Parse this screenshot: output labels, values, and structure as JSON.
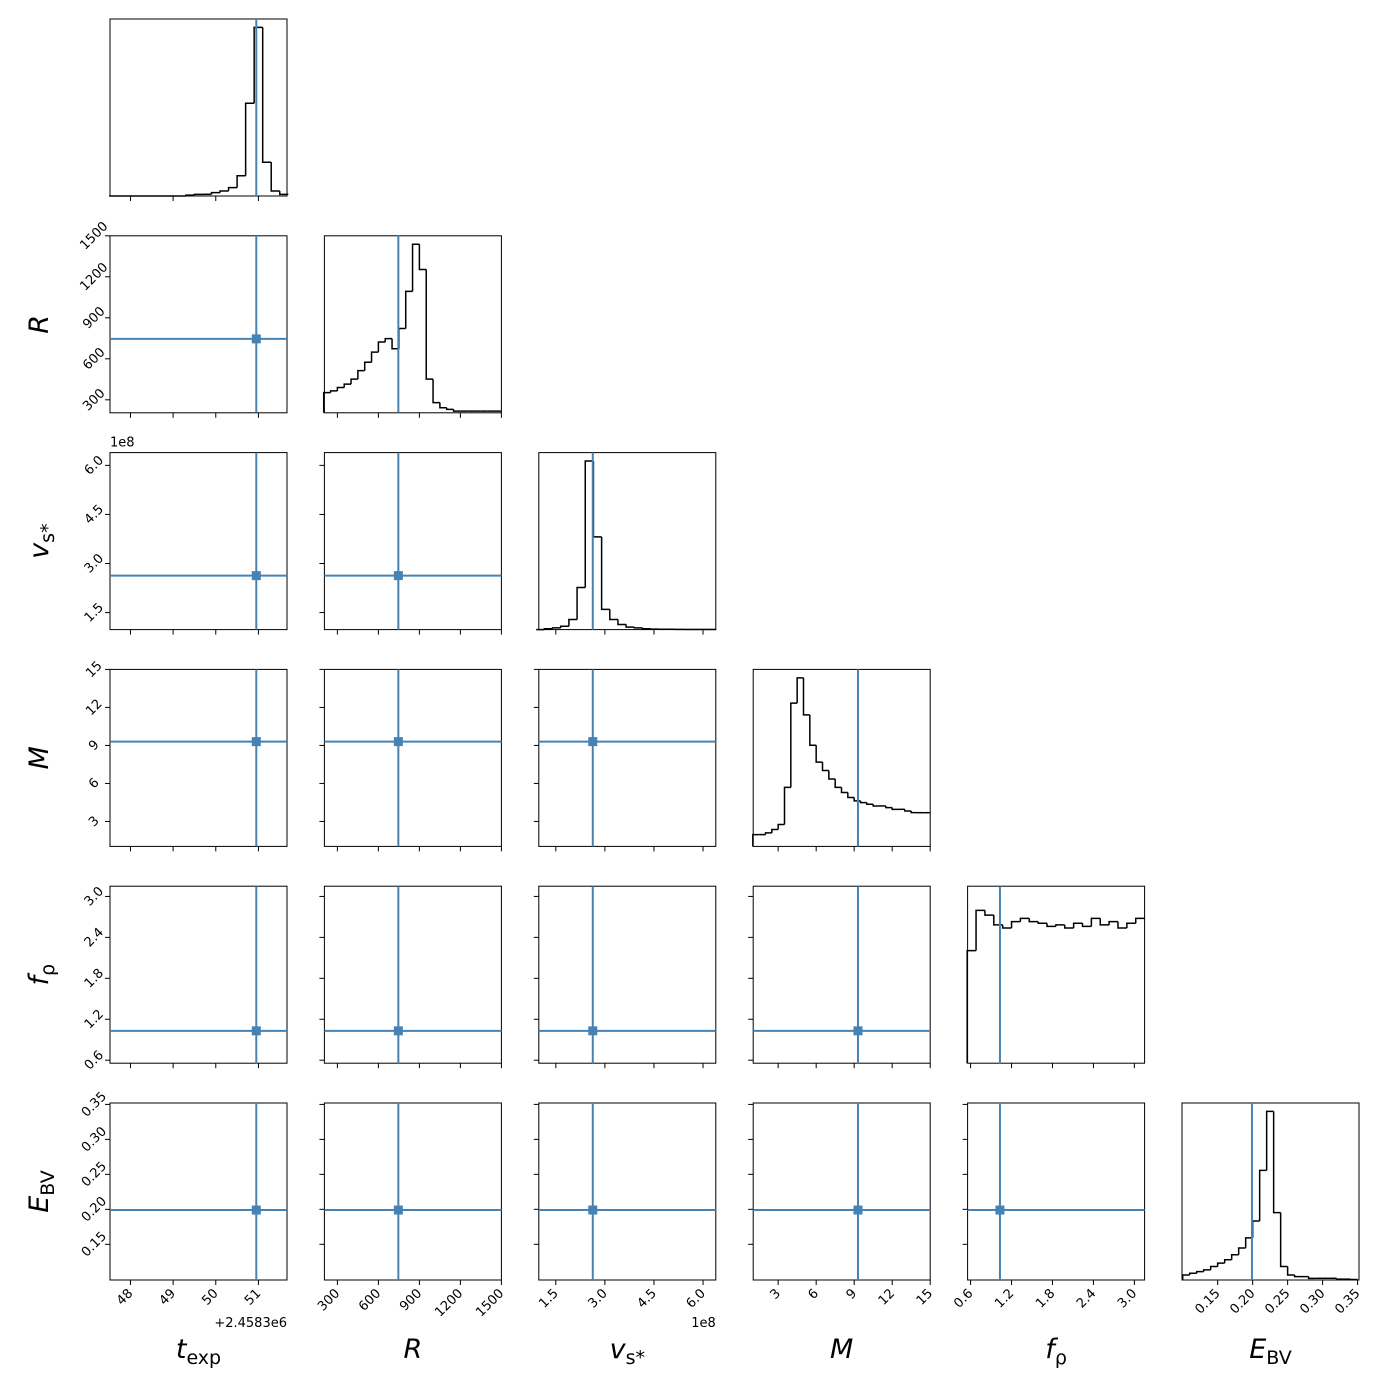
{
  "chart_data": {
    "type": "corner",
    "truth_color": "#4682b4",
    "hist_color": "#000000",
    "parameters": [
      {
        "label": {
          "symbol": "t",
          "sub": "exp"
        },
        "offset": "+2.4583e6",
        "truth": 50.95,
        "lim": [
          47.52,
          51.67
        ],
        "ticks": [
          48,
          49,
          50,
          51
        ],
        "hist": {
          "bins": [
            47.5,
            47.7,
            47.9,
            48.1,
            48.3,
            48.5,
            48.7,
            48.9,
            49.1,
            49.3,
            49.5,
            49.7,
            49.9,
            50.1,
            50.3,
            50.5,
            50.7,
            50.9,
            51.1,
            51.3,
            51.5,
            51.7
          ],
          "counts": [
            0,
            0,
            0,
            0,
            0,
            0,
            0,
            0,
            0,
            0.005,
            0.01,
            0.01,
            0.02,
            0.03,
            0.05,
            0.12,
            0.55,
            1.0,
            0.2,
            0.03,
            0.01
          ],
          "ylim": [
            0,
            1.05
          ]
        }
      },
      {
        "label": {
          "symbol": "R"
        },
        "truth": 746,
        "lim": [
          205,
          1500
        ],
        "ticks": [
          300,
          600,
          900,
          1200,
          1500
        ],
        "hist": {
          "bins": [
            200,
            250,
            300,
            350,
            400,
            450,
            500,
            550,
            600,
            650,
            700,
            750,
            800,
            850,
            900,
            950,
            1000,
            1050,
            1100,
            1150,
            1200,
            1250,
            1300,
            1350,
            1400,
            1450,
            1500
          ],
          "counts": [
            0.12,
            0.13,
            0.15,
            0.17,
            0.2,
            0.25,
            0.3,
            0.36,
            0.42,
            0.44,
            0.38,
            0.5,
            0.72,
            1.0,
            0.85,
            0.2,
            0.06,
            0.03,
            0.02,
            0.01,
            0.01,
            0.01,
            0.01,
            0.01,
            0.01,
            0.01
          ],
          "ylim": [
            0,
            1.05
          ]
        }
      },
      {
        "label": {
          "symbol": "v",
          "sub": "s*"
        },
        "offset": "1e8",
        "truth": 2.63,
        "lim": [
          0.98,
          6.39
        ],
        "ticks": [
          1.5,
          {
            "value": 3,
            "label": "3.0"
          },
          4.5,
          {
            "value": 6,
            "label": "6.0"
          }
        ],
        "hist": {
          "bins": [
            0.9,
            1.15,
            1.4,
            1.65,
            1.9,
            2.15,
            2.4,
            2.65,
            2.9,
            3.15,
            3.4,
            3.65,
            3.9,
            4.15,
            4.4,
            4.65,
            4.9,
            5.15,
            5.4,
            5.65,
            5.9,
            6.15,
            6.4
          ],
          "counts": [
            0,
            0.005,
            0.01,
            0.02,
            0.06,
            0.25,
            1.0,
            0.55,
            0.12,
            0.06,
            0.03,
            0.015,
            0.01,
            0.005,
            0.003,
            0.002,
            0.002,
            0.001,
            0.001,
            0.001,
            0.001,
            0.001
          ],
          "ylim": [
            0,
            1.05
          ]
        }
      },
      {
        "label": {
          "symbol": "M"
        },
        "truth": 9.3,
        "lim": [
          1.03,
          15
        ],
        "ticks": [
          3,
          6,
          9,
          12,
          15
        ],
        "hist": {
          "bins": [
            1,
            1.5,
            2,
            2.5,
            3,
            3.5,
            4,
            4.5,
            5,
            5.5,
            6,
            6.5,
            7,
            7.5,
            8,
            8.5,
            9,
            9.5,
            10,
            10.5,
            11,
            11.5,
            12,
            12.5,
            13,
            13.5,
            14,
            14.5,
            15
          ],
          "counts": [
            0.07,
            0.07,
            0.08,
            0.1,
            0.13,
            0.35,
            0.85,
            1.0,
            0.78,
            0.6,
            0.5,
            0.45,
            0.4,
            0.35,
            0.32,
            0.29,
            0.27,
            0.26,
            0.25,
            0.24,
            0.24,
            0.23,
            0.22,
            0.22,
            0.21,
            0.2,
            0.2,
            0.2
          ],
          "ylim": [
            0,
            1.05
          ]
        }
      },
      {
        "label": {
          "symbol": "f",
          "sub": "ρ"
        },
        "truth": 1.03,
        "lim": [
          0.556,
          3.15
        ],
        "ticks": [
          0.6,
          1.2,
          1.8,
          2.4,
          {
            "value": 3,
            "label": "3.0"
          }
        ],
        "hist": {
          "bins": [
            0.55,
            0.68,
            0.81,
            0.94,
            1.07,
            1.2,
            1.33,
            1.46,
            1.59,
            1.72,
            1.85,
            1.98,
            2.11,
            2.24,
            2.37,
            2.5,
            2.63,
            2.76,
            2.89,
            3.02,
            3.15
          ],
          "counts": [
            0.7,
            0.95,
            0.92,
            0.86,
            0.84,
            0.88,
            0.9,
            0.88,
            0.87,
            0.85,
            0.86,
            0.84,
            0.87,
            0.85,
            0.9,
            0.86,
            0.88,
            0.84,
            0.87,
            0.9
          ],
          "ylim": [
            0,
            1.1
          ]
        }
      },
      {
        "label": {
          "symbol": "E",
          "sub": "BV"
        },
        "truth": 0.199,
        "lim": [
          0.099,
          0.352
        ],
        "ticks": [
          0.15,
          {
            "value": 0.2,
            "label": "0.20"
          },
          0.25,
          {
            "value": 0.3,
            "label": "0.30"
          },
          0.35
        ],
        "hist": {
          "bins": [
            0.1,
            0.11,
            0.12,
            0.13,
            0.14,
            0.15,
            0.16,
            0.17,
            0.18,
            0.19,
            0.2,
            0.21,
            0.22,
            0.23,
            0.24,
            0.25,
            0.26,
            0.27,
            0.28,
            0.29,
            0.3,
            0.31,
            0.32,
            0.33,
            0.34,
            0.35
          ],
          "counts": [
            0.03,
            0.04,
            0.05,
            0.06,
            0.08,
            0.1,
            0.12,
            0.15,
            0.19,
            0.25,
            0.35,
            0.65,
            1.0,
            0.4,
            0.08,
            0.03,
            0.02,
            0.02,
            0.01,
            0.01,
            0.01,
            0.01,
            0.005,
            0.005,
            0.003
          ],
          "ylim": [
            0,
            1.05
          ]
        }
      }
    ]
  }
}
